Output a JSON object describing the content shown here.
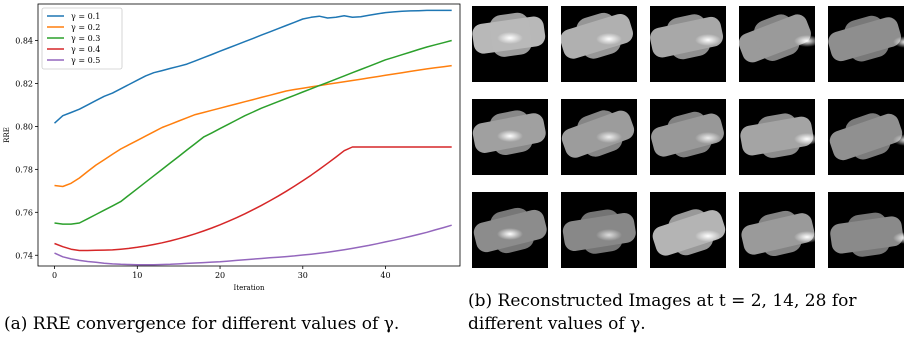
{
  "chart_data": {
    "type": "line",
    "xlabel": "Iteration",
    "ylabel": "RRE",
    "xlim": [
      -2,
      49
    ],
    "ylim": [
      0.735,
      0.857
    ],
    "xticks": [
      0,
      10,
      20,
      30,
      40
    ],
    "yticks": [
      0.74,
      0.76,
      0.78,
      0.8,
      0.82,
      0.84
    ],
    "legend_position": "top-left",
    "grid": false,
    "series": [
      {
        "name": "γ = 0.1",
        "color": "#1f77b4",
        "x": [
          0,
          1,
          2,
          3,
          4,
          5,
          6,
          7,
          8,
          9,
          10,
          11,
          12,
          13,
          14,
          15,
          16,
          17,
          18,
          19,
          20,
          21,
          22,
          23,
          24,
          25,
          26,
          27,
          28,
          29,
          30,
          31,
          32,
          33,
          34,
          35,
          36,
          37,
          38,
          39,
          40,
          41,
          42,
          43,
          44,
          45,
          46,
          47,
          48
        ],
        "y": [
          0.8015,
          0.805,
          0.8065,
          0.808,
          0.81,
          0.812,
          0.814,
          0.8155,
          0.8175,
          0.8195,
          0.8215,
          0.8235,
          0.825,
          0.826,
          0.827,
          0.828,
          0.829,
          0.8305,
          0.832,
          0.8335,
          0.835,
          0.8365,
          0.838,
          0.8395,
          0.841,
          0.8425,
          0.844,
          0.8455,
          0.847,
          0.8485,
          0.85,
          0.8508,
          0.8513,
          0.8505,
          0.8508,
          0.8515,
          0.8508,
          0.8511,
          0.8518,
          0.8524,
          0.853,
          0.8533,
          0.8536,
          0.8538,
          0.8539,
          0.854,
          0.854,
          0.854,
          0.854
        ]
      },
      {
        "name": "γ = 0.2",
        "color": "#ff7f0e",
        "x": [
          0,
          1,
          2,
          3,
          4,
          5,
          6,
          7,
          8,
          9,
          10,
          11,
          12,
          13,
          14,
          15,
          16,
          17,
          18,
          19,
          20,
          21,
          22,
          23,
          24,
          25,
          26,
          27,
          28,
          29,
          30,
          31,
          32,
          33,
          34,
          35,
          36,
          37,
          38,
          39,
          40,
          41,
          42,
          43,
          44,
          45,
          46,
          47,
          48
        ],
        "y": [
          0.7725,
          0.772,
          0.7735,
          0.776,
          0.779,
          0.782,
          0.7845,
          0.787,
          0.7895,
          0.7915,
          0.7935,
          0.7955,
          0.7975,
          0.7995,
          0.801,
          0.8025,
          0.804,
          0.8055,
          0.8065,
          0.8075,
          0.8085,
          0.8095,
          0.8105,
          0.8115,
          0.8125,
          0.8135,
          0.8145,
          0.8155,
          0.8165,
          0.8172,
          0.8178,
          0.8184,
          0.819,
          0.8196,
          0.8202,
          0.8208,
          0.8214,
          0.822,
          0.8226,
          0.8232,
          0.8238,
          0.8244,
          0.825,
          0.8256,
          0.8262,
          0.8268,
          0.8273,
          0.8278,
          0.8283
        ]
      },
      {
        "name": "γ = 0.3",
        "color": "#2ca02c",
        "x": [
          0,
          1,
          2,
          3,
          4,
          5,
          6,
          7,
          8,
          9,
          10,
          11,
          12,
          13,
          14,
          15,
          16,
          17,
          18,
          19,
          20,
          21,
          22,
          23,
          24,
          25,
          26,
          27,
          28,
          29,
          30,
          31,
          32,
          33,
          34,
          35,
          36,
          37,
          38,
          39,
          40,
          41,
          42,
          43,
          44,
          45,
          46,
          47,
          48
        ],
        "y": [
          0.755,
          0.7545,
          0.7545,
          0.755,
          0.757,
          0.759,
          0.761,
          0.763,
          0.765,
          0.768,
          0.771,
          0.774,
          0.777,
          0.78,
          0.783,
          0.786,
          0.789,
          0.792,
          0.795,
          0.797,
          0.799,
          0.801,
          0.803,
          0.805,
          0.8067,
          0.8085,
          0.81,
          0.8115,
          0.813,
          0.8145,
          0.816,
          0.8175,
          0.819,
          0.8205,
          0.822,
          0.8235,
          0.825,
          0.8265,
          0.828,
          0.8295,
          0.831,
          0.8322,
          0.8334,
          0.8346,
          0.8358,
          0.837,
          0.838,
          0.839,
          0.84
        ]
      },
      {
        "name": "γ = 0.4",
        "color": "#d62728",
        "x": [
          0,
          1,
          2,
          3,
          4,
          5,
          6,
          7,
          8,
          9,
          10,
          11,
          12,
          13,
          14,
          15,
          16,
          17,
          18,
          19,
          20,
          21,
          22,
          23,
          24,
          25,
          26,
          27,
          28,
          29,
          30,
          31,
          32,
          33,
          34,
          35,
          36,
          37,
          38,
          39,
          40,
          41,
          42,
          43,
          44,
          45,
          46,
          47,
          48
        ],
        "y": [
          0.7455,
          0.744,
          0.7428,
          0.7422,
          0.7422,
          0.7423,
          0.7424,
          0.7425,
          0.7428,
          0.7432,
          0.7437,
          0.7443,
          0.745,
          0.7458,
          0.7467,
          0.7477,
          0.7488,
          0.75,
          0.7513,
          0.7527,
          0.7542,
          0.7558,
          0.7575,
          0.7593,
          0.7612,
          0.7632,
          0.7653,
          0.7675,
          0.7698,
          0.7722,
          0.7747,
          0.7773,
          0.78,
          0.7828,
          0.7857,
          0.7887,
          0.7904,
          0.7904,
          0.7904,
          0.7904,
          0.7904,
          0.7904,
          0.7904,
          0.7904,
          0.7904,
          0.7904,
          0.7904,
          0.7904,
          0.7904
        ]
      },
      {
        "name": "γ = 0.5",
        "color": "#9467bd",
        "x": [
          0,
          1,
          2,
          3,
          4,
          5,
          6,
          7,
          8,
          9,
          10,
          11,
          12,
          13,
          14,
          15,
          16,
          17,
          18,
          19,
          20,
          21,
          22,
          23,
          24,
          25,
          26,
          27,
          28,
          29,
          30,
          31,
          32,
          33,
          34,
          35,
          36,
          37,
          38,
          39,
          40,
          41,
          42,
          43,
          44,
          45,
          46,
          47,
          48
        ],
        "y": [
          0.741,
          0.7393,
          0.7383,
          0.7376,
          0.7371,
          0.7367,
          0.7363,
          0.736,
          0.7358,
          0.7357,
          0.7356,
          0.7356,
          0.7356,
          0.7357,
          0.7358,
          0.736,
          0.7362,
          0.7364,
          0.7366,
          0.7368,
          0.737,
          0.7373,
          0.7376,
          0.7379,
          0.7382,
          0.7385,
          0.7388,
          0.7391,
          0.7394,
          0.7397,
          0.7401,
          0.7405,
          0.7409,
          0.7414,
          0.742,
          0.7426,
          0.7432,
          0.7439,
          0.7446,
          0.7454,
          0.7462,
          0.747,
          0.7479,
          0.7488,
          0.7497,
          0.7507,
          0.7518,
          0.7529,
          0.754
        ]
      }
    ]
  },
  "captions": {
    "a": "(a) RRE convergence for different values of γ.",
    "b_line1": "(b) Reconstructed Images at t = 2, 14, 28 for",
    "b_line2": "different values of γ."
  },
  "image_grid": {
    "rows": 3,
    "cols": 5,
    "cells": [
      {
        "body": "#b8b8b8",
        "spot": "#ffffff"
      },
      {
        "body": "#b0b0b0",
        "spot": "#ffffff"
      },
      {
        "body": "#a8a8a8",
        "spot": "#ffffff"
      },
      {
        "body": "#9a9a9a",
        "spot": "#ffffff"
      },
      {
        "body": "#8e8e8e",
        "spot": "#ffffff"
      },
      {
        "body": "#a0a0a0",
        "spot": "#ffffff"
      },
      {
        "body": "#9c9c9c",
        "spot": "#eeeeee"
      },
      {
        "body": "#989898",
        "spot": "#eeeeee"
      },
      {
        "body": "#a4a4a4",
        "spot": "#ffffff"
      },
      {
        "body": "#909090",
        "spot": "#e8e8e8"
      },
      {
        "body": "#8c8c8c",
        "spot": "#ffffff"
      },
      {
        "body": "#888888",
        "spot": "#dddddd"
      },
      {
        "body": "#b4b4b4",
        "spot": "#ffffff"
      },
      {
        "body": "#9a9a9a",
        "spot": "#ffffff"
      },
      {
        "body": "#8a8a8a",
        "spot": "#ffffff"
      }
    ]
  }
}
